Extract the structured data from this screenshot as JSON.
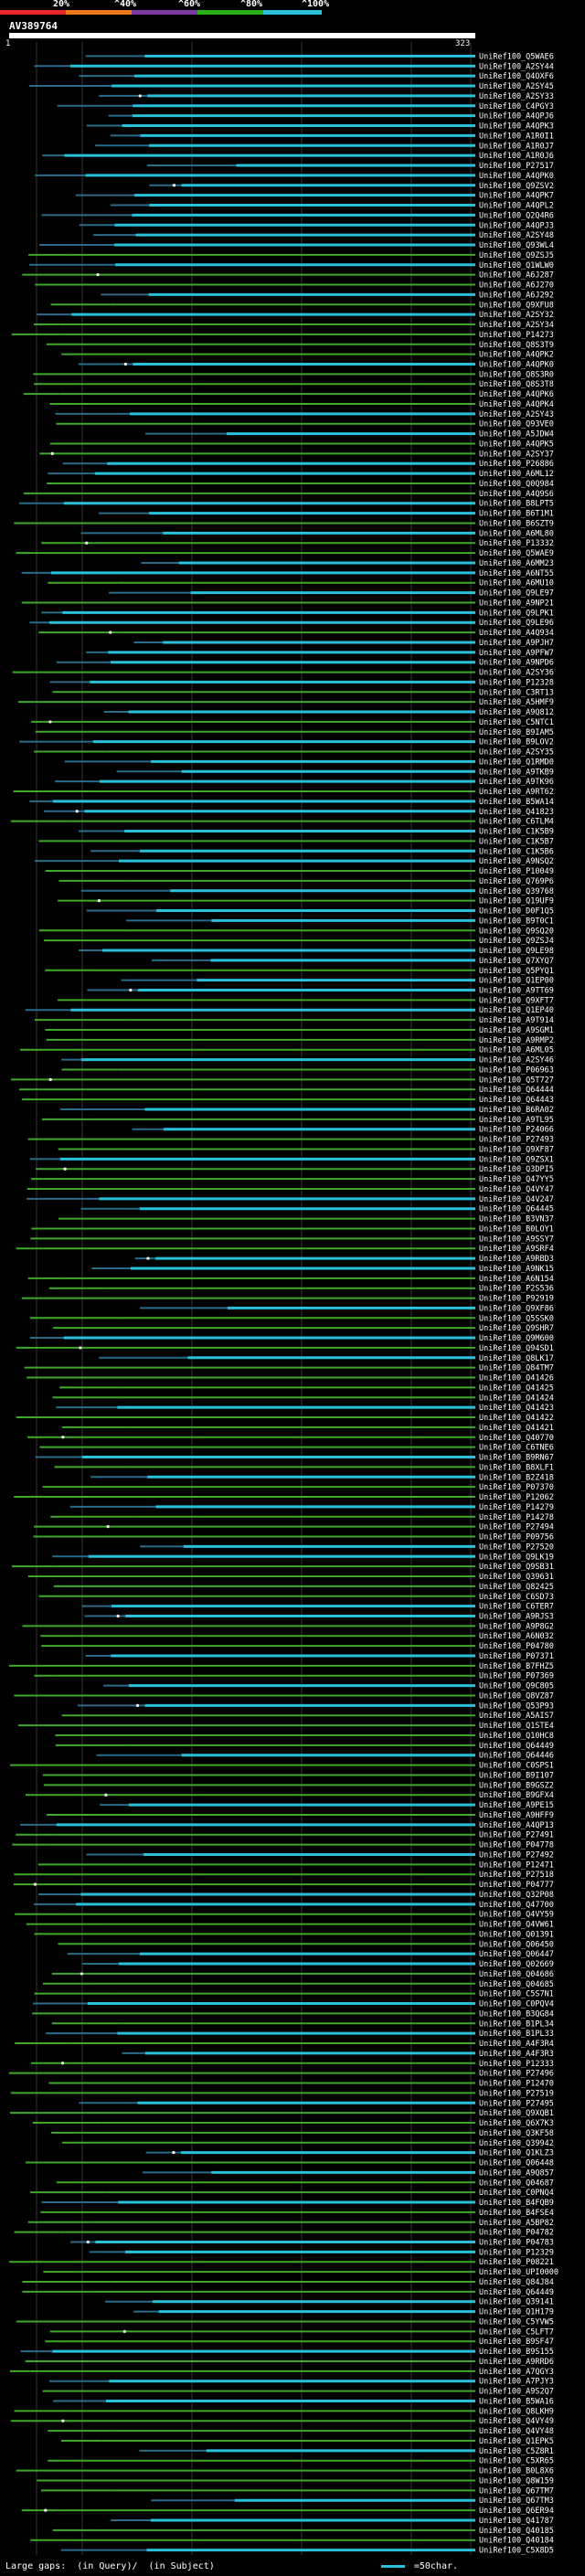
{
  "legend": {
    "labels": [
      "20%",
      "^40%",
      "^60%",
      "^80%",
      "^100%"
    ],
    "colors": [
      "#e8262a",
      "#ee7a1a",
      "#7d3aa6",
      "#2bb019",
      "#29c1d9"
    ]
  },
  "query": {
    "title": "AV389764",
    "start_label": "1",
    "end_label": "323"
  },
  "colors": {
    "green": "#3fa82b",
    "cyan": "#29c1d9",
    "connector": "#2a6b8a",
    "gridline": "#5a5a5a"
  },
  "hits": [
    "UniRef100_Q5WAE6",
    "UniRef100_A2SY44",
    "UniRef100_Q4OXF6",
    "UniRef100_A2SY45",
    "UniRef100_A2SY33",
    "UniRef100_C4PGY3",
    "UniRef100_A4QPJ6",
    "UniRef100_A4QPK3",
    "UniRef100_A1R0I1",
    "UniRef100_A1R0J7",
    "UniRef100_A1R0J6",
    "UniRef100_P27517",
    "UniRef100_A4QPK0",
    "UniRef100_Q9ZSV2",
    "UniRef100_A4QPK7",
    "UniRef100_A4QPL2",
    "UniRef100_Q2Q4R6",
    "UniRef100_A4QPJ3",
    "UniRef100_A2SY48",
    "UniRef100_Q93WL4",
    "UniRef100_Q9ZSJ5",
    "UniRef100_Q1WLW0",
    "UniRef100_A6J287",
    "UniRef100_A6J270",
    "UniRef100_A6J292",
    "UniRef100_Q9XFU8",
    "UniRef100_A2SY32",
    "UniRef100_A2SY34",
    "UniRef100_P14273",
    "UniRef100_Q8S3T9",
    "UniRef100_A4QPK2",
    "UniRef100_A4QPK0",
    "UniRef100_Q8S3R0",
    "UniRef100_Q8S3T8",
    "UniRef100_A4QPK6",
    "UniRef100_A4QPK4",
    "UniRef100_A2SY43",
    "UniRef100_Q93VE0",
    "UniRef100_A5JDW4",
    "UniRef100_A4QPK5",
    "UniRef100_A2SY37",
    "UniRef100_P26886",
    "UniRef100_A6ML12",
    "UniRef100_Q0Q984",
    "UniRef100_A4Q9S6",
    "UniRef100_B8LPT5",
    "UniRef100_B6T1M1",
    "UniRef100_B6SZT9",
    "UniRef100_A6ML80",
    "UniRef100_P13332",
    "UniRef100_Q5WAE9",
    "UniRef100_A6MM23",
    "UniRef100_A6NT55",
    "UniRef100_A6MU10",
    "UniRef100_Q9LE97",
    "UniRef100_A9NP21",
    "UniRef100_Q9LPK1",
    "UniRef100_Q9LE96",
    "UniRef100_A4Q934",
    "UniRef100_A9PJH7",
    "UniRef100_A9PFW7",
    "UniRef100_A9NPD6",
    "UniRef100_A2SY36",
    "UniRef100_P12328",
    "UniRef100_C3RT13",
    "UniRef100_A5HMF9",
    "UniRef100_A9Q812",
    "UniRef100_C5NTC1",
    "UniRef100_B9IAM5",
    "UniRef100_B9LOV2",
    "UniRef100_A2SY35",
    "UniRef100_Q1RMD0",
    "UniRef100_A9TKB9",
    "UniRef100_A9TK96",
    "UniRef100_A9RT62",
    "UniRef100_B5WA14",
    "UniRef100_Q41823",
    "UniRef100_C6TLM4",
    "UniRef100_C1K5B9",
    "UniRef100_C1K5B7",
    "UniRef100_C1K5B6",
    "UniRef100_A9NSQ2",
    "UniRef100_P10049",
    "UniRef100_Q769P6",
    "UniRef100_Q39768",
    "UniRef100_Q19UF9",
    "UniRef100_D0F1Q5",
    "UniRef100_B9T0C1",
    "UniRef100_Q9SQ20",
    "UniRef100_Q9ZSJ4",
    "UniRef100_Q9LE98",
    "UniRef100_Q7XYQ7",
    "UniRef100_Q5PYQ1",
    "UniRef100_Q1EP00",
    "UniRef100_A9TT69",
    "UniRef100_Q9XFT7",
    "UniRef100_Q1EP40",
    "UniRef100_A9T914",
    "UniRef100_A9SGM1",
    "UniRef100_A9RMP2",
    "UniRef100_A6ML05",
    "UniRef100_A2SY46",
    "UniRef100_P06963",
    "UniRef100_Q5T727",
    "UniRef100_Q64444",
    "UniRef100_Q64443",
    "UniRef100_B6RA02",
    "UniRef100_A9TL95",
    "UniRef100_P24066",
    "UniRef100_P27493",
    "UniRef100_Q9XF87",
    "UniRef100_Q9ZSX1",
    "UniRef100_Q3DPI5",
    "UniRef100_Q47YY5",
    "UniRef100_Q4VY47",
    "UniRef100_Q4V247",
    "UniRef100_Q64445",
    "UniRef100_B3VN37",
    "UniRef100_B0LOY1",
    "UniRef100_A9SSY7",
    "UniRef100_A9SRF4",
    "UniRef100_A9RBD3",
    "UniRef100_A9NK15",
    "UniRef100_A6N154",
    "UniRef100_P2S536",
    "UniRef100_P92919",
    "UniRef100_Q9XF86",
    "UniRef100_Q5SSK0",
    "UniRef100_Q9SHR7",
    "UniRef100_Q9M600",
    "UniRef100_Q94SD1",
    "UniRef100_Q8LK17",
    "UniRef100_Q84TM7",
    "UniRef100_Q41426",
    "UniRef100_Q41425",
    "UniRef100_Q41424",
    "UniRef100_Q41423",
    "UniRef100_Q41422",
    "UniRef100_Q41421",
    "UniRef100_Q40770",
    "UniRef100_C6TNE6",
    "UniRef100_B9RN67",
    "UniRef100_B8XLF1",
    "UniRef100_B2Z418",
    "UniRef100_P07370",
    "UniRef100_P12062",
    "UniRef100_P14279",
    "UniRef100_P14278",
    "UniRef100_P27494",
    "UniRef100_P09756",
    "UniRef100_P27520",
    "UniRef100_Q9LK19",
    "UniRef100_Q9SB31",
    "UniRef100_Q39631",
    "UniRef100_Q82425",
    "UniRef100_C6SD73",
    "UniRef100_C6TER7",
    "UniRef100_A9RJS3",
    "UniRef100_A9P8G2",
    "UniRef100_A6N032",
    "UniRef100_P04780",
    "UniRef100_P07371",
    "UniRef100_B7FHZ5",
    "UniRef100_P07369",
    "UniRef100_Q9C805",
    "UniRef100_Q8VZ87",
    "UniRef100_Q53P93",
    "UniRef100_A5AIS7",
    "UniRef100_Q1STE4",
    "UniRef100_Q10HC8",
    "UniRef100_Q64449",
    "UniRef100_Q64446",
    "UniRef100_C0SPS1",
    "UniRef100_B9I107",
    "UniRef100_B9GSZ2",
    "UniRef100_B9GFX4",
    "UniRef100_A9PE15",
    "UniRef100_A9HFF9",
    "UniRef100_A4QP13",
    "UniRef100_P27491",
    "UniRef100_P04778",
    "UniRef100_P27492",
    "UniRef100_P12471",
    "UniRef100_P27518",
    "UniRef100_P04777",
    "UniRef100_Q32P08",
    "UniRef100_Q47700",
    "UniRef100_Q4VY59",
    "UniRef100_Q4VW61",
    "UniRef100_Q01391",
    "UniRef100_Q06450",
    "UniRef100_Q06447",
    "UniRef100_Q02669",
    "UniRef100_Q04686",
    "UniRef100_Q04685",
    "UniRef100_C5S7N1",
    "UniRef100_C0PQV4",
    "UniRef100_B3QG84",
    "UniRef100_B1PL34",
    "UniRef100_B1PL33",
    "UniRef100_A4F3R4",
    "UniRef100_A4F3R3",
    "UniRef100_P12333",
    "UniRef100_P27496",
    "UniRef100_P12470",
    "UniRef100_P27519",
    "UniRef100_P27495",
    "UniRef100_Q9XQB1",
    "UniRef100_Q6X7K3",
    "UniRef100_Q3KF58",
    "UniRef100_Q39942",
    "UniRef100_Q1KLZ3",
    "UniRef100_Q06448",
    "UniRef100_A9Q857",
    "UniRef100_Q04687",
    "UniRef100_C0PNQ4",
    "UniRef100_B4FQB9",
    "UniRef100_B4FSE4",
    "UniRef100_A5BP82",
    "UniRef100_P04782",
    "UniRef100_P04783",
    "UniRef100_P12329",
    "UniRef100_P08221",
    "UniRef100_UPI0000",
    "UniRef100_Q84J84",
    "UniRef100_Q64449",
    "UniRef100_Q39141",
    "UniRef100_Q1H179",
    "UniRef100_C5YVW5",
    "UniRef100_C5LFT7",
    "UniRef100_B9SF47",
    "UniRef100_B9S155",
    "UniRef100_A9RRD6",
    "UniRef100_A7QGY3",
    "UniRef100_A7PJY3",
    "UniRef100_A9S2Q7",
    "UniRef100_B5WA16",
    "UniRef100_Q8LKH9",
    "UniRef100_Q4VY49",
    "UniRef100_Q4VY48",
    "UniRef100_Q1EPK5",
    "UniRef100_C5Z8R1",
    "UniRef100_C5XR65",
    "UniRef100_B0L8X6",
    "UniRef100_Q8W159",
    "UniRef100_Q67TM7",
    "UniRef100_Q67TM3",
    "UniRef100_Q6ER94",
    "UniRef100_Q41787",
    "UniRef100_Q40185",
    "UniRef100_Q40184",
    "UniRef100_C5X8D5"
  ],
  "footer": {
    "gaps_label": "Large gaps:",
    "in_query": "(in Query)/",
    "in_subject": "(in Subject)",
    "scale_label": "=50char."
  }
}
